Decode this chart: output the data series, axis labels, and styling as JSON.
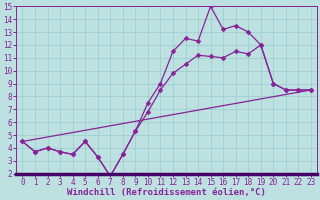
{
  "xlabel": "Windchill (Refroidissement éolien,°C)",
  "xlim": [
    -0.5,
    23.5
  ],
  "ylim": [
    2,
    15
  ],
  "xticks": [
    0,
    1,
    2,
    3,
    4,
    5,
    6,
    7,
    8,
    9,
    10,
    11,
    12,
    13,
    14,
    15,
    16,
    17,
    18,
    19,
    20,
    21,
    22,
    23
  ],
  "yticks": [
    2,
    3,
    4,
    5,
    6,
    7,
    8,
    9,
    10,
    11,
    12,
    13,
    14,
    15
  ],
  "bg_color": "#bde0e0",
  "plot_bg": "#bde0e0",
  "grid_color": "#99cccc",
  "line_color": "#882299",
  "spine_bottom_color": "#440066",
  "line1_x": [
    0,
    1,
    2,
    3,
    4,
    5,
    6,
    7,
    8,
    9,
    10,
    11,
    12,
    13,
    14,
    15,
    16,
    17,
    18,
    19,
    20,
    21,
    22,
    23
  ],
  "line1_y": [
    4.5,
    3.7,
    4.0,
    3.7,
    3.5,
    4.5,
    3.3,
    1.8,
    3.5,
    5.3,
    7.5,
    9.0,
    11.5,
    12.5,
    12.3,
    15.0,
    13.2,
    13.5,
    13.0,
    12.0,
    9.0,
    8.5,
    8.5,
    8.5
  ],
  "line2_x": [
    0,
    1,
    2,
    3,
    4,
    5,
    6,
    7,
    8,
    9,
    10,
    11,
    12,
    13,
    14,
    15,
    16,
    17,
    18,
    19,
    20,
    21,
    22,
    23
  ],
  "line2_y": [
    4.5,
    3.7,
    4.0,
    3.7,
    3.5,
    4.5,
    3.3,
    1.8,
    3.5,
    5.3,
    6.8,
    8.5,
    9.8,
    10.5,
    11.2,
    11.1,
    11.0,
    11.5,
    11.3,
    12.0,
    9.0,
    8.5,
    8.5,
    8.5
  ],
  "line3_x": [
    0,
    23
  ],
  "line3_y": [
    4.5,
    8.5
  ],
  "marker": "D",
  "markersize": 2.5,
  "linewidth": 0.9,
  "tick_fontsize": 5.5,
  "xlabel_fontsize": 6.5
}
